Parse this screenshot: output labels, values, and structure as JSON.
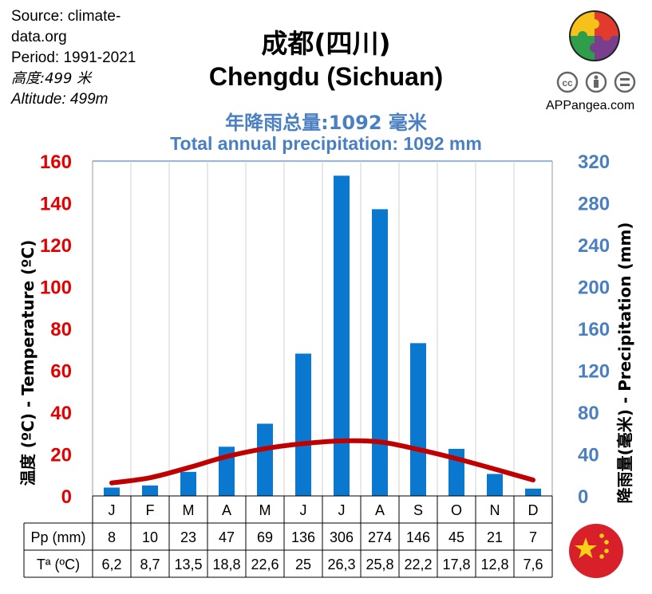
{
  "meta": {
    "source": "Source: climate-\ndata.org",
    "period": "Period: 1991-2021",
    "altitude_zh": "高度:499 米",
    "altitude_en": "Altitude: 499m"
  },
  "brand": {
    "text": "APPangea.com"
  },
  "colors": {
    "temp_axis": "#e30000",
    "precip_axis": "#4a7fc1",
    "bar": "#0b78d0",
    "temp_line": "#c00000"
  },
  "chart_data": {
    "type": "bar",
    "title": "成都(四川)",
    "subtitle": "Chengdu (Sichuan)",
    "annotation_zh": "年降雨总量:1092 毫米",
    "annotation_en": "Total annual precipitation: 1092 mm",
    "categories": [
      "J",
      "F",
      "M",
      "A",
      "M",
      "J",
      "J",
      "A",
      "S",
      "O",
      "N",
      "D"
    ],
    "series": [
      {
        "name": "Pp (mm)",
        "axis": "right",
        "type": "bar",
        "values": [
          8,
          10,
          23,
          47,
          69,
          136,
          306,
          274,
          146,
          45,
          21,
          7
        ]
      },
      {
        "name": "Tª (ºC)",
        "axis": "left",
        "type": "line",
        "values": [
          6.2,
          8.7,
          13.5,
          18.8,
          22.6,
          25,
          26.3,
          25.8,
          22.2,
          17.8,
          12.8,
          7.6
        ]
      }
    ],
    "table_values": {
      "pp": [
        "8",
        "10",
        "23",
        "47",
        "69",
        "136",
        "306",
        "274",
        "146",
        "45",
        "21",
        "7"
      ],
      "temp": [
        "6,2",
        "8,7",
        "13,5",
        "18,8",
        "22,6",
        "25",
        "26,3",
        "25,8",
        "22,2",
        "17,8",
        "12,8",
        "7,6"
      ]
    },
    "ylabel_left": "温度 (ºC) - Temperature (ºC)",
    "ylabel_right": "降雨量(毫米) - Precipitation (mm)",
    "ylim_left": [
      0,
      160
    ],
    "ylim_right": [
      0,
      320
    ],
    "yticks_left": [
      "0",
      "20",
      "40",
      "60",
      "80",
      "100",
      "120",
      "140",
      "160"
    ],
    "yticks_right": [
      "0",
      "40",
      "80",
      "120",
      "160",
      "200",
      "240",
      "280",
      "320"
    ],
    "grid": true,
    "legend": "none"
  }
}
